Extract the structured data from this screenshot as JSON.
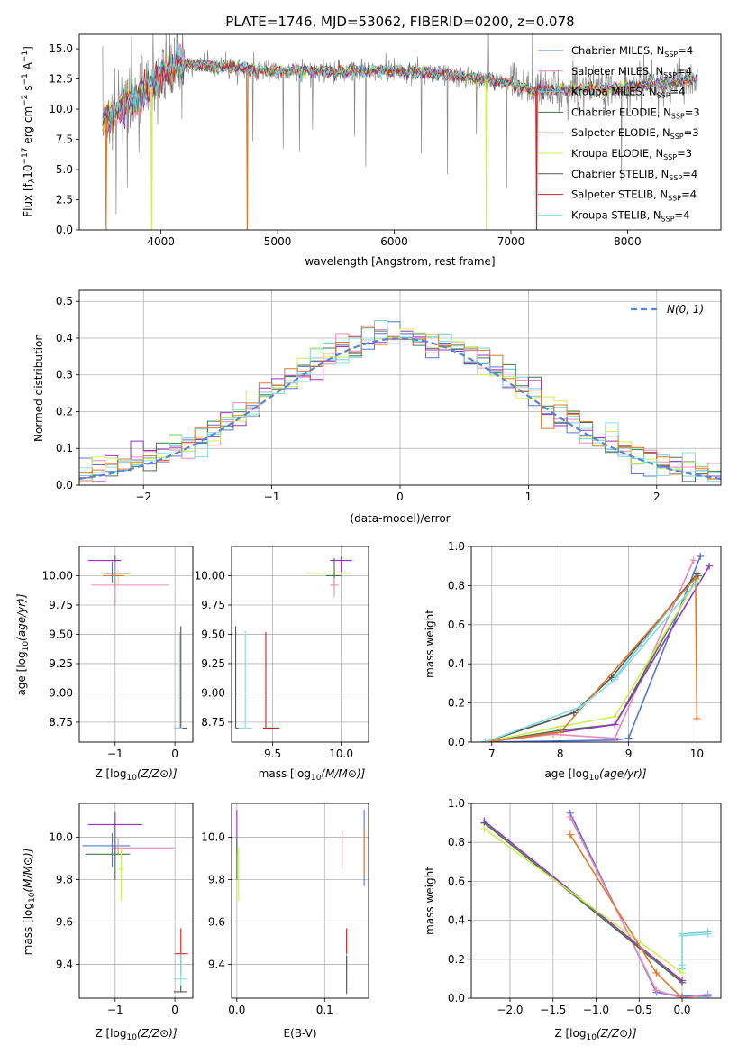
{
  "figure": {
    "title": "PLATE=1746, MJD=53062, FIBERID=0200, z=0.078"
  },
  "colors": {
    "Chabrier MILES": "#5577dd",
    "Salpeter MILES": "#ee88bb",
    "Kroupa MILES": "#77ccdd",
    "Chabrier ELODIE": "#447744",
    "Salpeter ELODIE": "#9933bb",
    "Kroupa ELODIE": "#ccee55",
    "Chabrier STELIB": "#555555",
    "Salpeter STELIB": "#cc2222",
    "Kroupa STELIB": "#88dddd",
    "data": "#888888",
    "orange": "#e07a2a"
  },
  "chart_data": [
    {
      "id": "spectrum",
      "type": "line",
      "title": "PLATE=1746, MJD=53062, FIBERID=0200, z=0.078",
      "xlabel": "wavelength [Angstrom, rest frame]",
      "ylabel": "Flux [f",
      "xlim": [
        3300,
        8800
      ],
      "ylim": [
        0,
        16.2
      ],
      "xticks": [
        4000,
        5000,
        6000,
        7000,
        8000
      ],
      "yticks": [
        0.0,
        2.5,
        5.0,
        7.5,
        10.0,
        12.5,
        15.0
      ],
      "legend": [
        {
          "label": "Chabrier MILES, N",
          "sub": "SSP",
          "tail": "=4"
        },
        {
          "label": "Salpeter MILES, N",
          "sub": "SSP",
          "tail": "=4"
        },
        {
          "label": "Kroupa MILES, N",
          "sub": "SSP",
          "tail": "=4"
        },
        {
          "label": "Chabrier ELODIE, N",
          "sub": "SSP",
          "tail": "=3"
        },
        {
          "label": "Salpeter ELODIE, N",
          "sub": "SSP",
          "tail": "=3"
        },
        {
          "label": "Kroupa ELODIE, N",
          "sub": "SSP",
          "tail": "=3"
        },
        {
          "label": "Chabrier STELIB, N",
          "sub": "SSP",
          "tail": "=4"
        },
        {
          "label": "Salpeter STELIB, N",
          "sub": "SSP",
          "tail": "=4"
        },
        {
          "label": "Kroupa STELIB, N",
          "sub": "SSP",
          "tail": "=4"
        }
      ],
      "continuum": [
        [
          3500,
          9.0
        ],
        [
          3700,
          10.5
        ],
        [
          3900,
          11.5
        ],
        [
          4000,
          13.0
        ],
        [
          4200,
          13.8
        ],
        [
          4500,
          13.5
        ],
        [
          5000,
          13.2
        ],
        [
          5500,
          13.1
        ],
        [
          6000,
          13.2
        ],
        [
          6500,
          12.8
        ],
        [
          7000,
          12.2
        ],
        [
          7200,
          11.5
        ],
        [
          7500,
          11.6
        ],
        [
          8000,
          11.8
        ],
        [
          8600,
          12.5
        ]
      ],
      "dips": [
        [
          3530,
          0.0
        ],
        [
          3920,
          0.0
        ],
        [
          4740,
          0.0
        ],
        [
          6790,
          0.0
        ],
        [
          7220,
          0.0
        ]
      ]
    },
    {
      "id": "residuals",
      "type": "line",
      "xlabel": "(data-model)/error",
      "ylabel": "Normed distribution",
      "xlim": [
        -2.5,
        2.5
      ],
      "ylim": [
        0,
        0.53
      ],
      "xticks": [
        -2,
        -1,
        0,
        1,
        2
      ],
      "yticks": [
        0.0,
        0.1,
        0.2,
        0.3,
        0.4,
        0.5
      ],
      "legend_label": "N(0, 1)"
    },
    {
      "id": "age_vs_Z",
      "type": "scatter",
      "xlabel": "Z [log",
      "ylabel": "age  [log",
      "xlim": [
        -1.6,
        0.3
      ],
      "ylim": [
        8.58,
        10.25
      ],
      "xticks": [
        -1,
        0
      ],
      "yticks": [
        8.75,
        9.0,
        9.25,
        9.5,
        9.75,
        10.0
      ]
    },
    {
      "id": "age_vs_mass",
      "type": "scatter",
      "xlabel": "mass [log",
      "ylabel": "",
      "xlim": [
        9.2,
        10.2
      ],
      "ylim": [
        8.58,
        10.25
      ],
      "xticks": [
        9.5,
        10.0
      ],
      "yticks": [
        8.75,
        9.0,
        9.25,
        9.5,
        9.75,
        10.0
      ]
    },
    {
      "id": "weight_vs_age",
      "type": "line",
      "xlabel": "age  [log",
      "ylabel": "mass weight",
      "xlim": [
        6.7,
        10.35
      ],
      "ylim": [
        0,
        1.0
      ],
      "xticks": [
        7,
        8,
        9,
        10
      ],
      "yticks": [
        0.0,
        0.2,
        0.4,
        0.6,
        0.8,
        1.0
      ],
      "series": [
        {
          "name": "Chabrier MILES",
          "x": [
            6.9,
            8.8,
            9.0,
            10.05
          ],
          "y": [
            0.0,
            0.01,
            0.02,
            0.95
          ]
        },
        {
          "name": "Salpeter MILES",
          "x": [
            6.9,
            7.9,
            8.8,
            9.95
          ],
          "y": [
            0.0,
            0.04,
            0.02,
            0.93
          ]
        },
        {
          "name": "Kroupa MILES",
          "x": [
            6.9,
            8.2,
            8.75,
            8.8,
            10.0
          ],
          "y": [
            0.0,
            0.15,
            0.33,
            0.33,
            0.86
          ]
        },
        {
          "name": "Chabrier ELODIE",
          "x": [
            6.9,
            8.0,
            8.8,
            10.02
          ],
          "y": [
            0.0,
            0.06,
            0.09,
            0.85
          ]
        },
        {
          "name": "Salpeter ELODIE",
          "x": [
            6.9,
            8.0,
            8.8,
            10.18
          ],
          "y": [
            0.0,
            0.05,
            0.09,
            0.9
          ]
        },
        {
          "name": "Kroupa ELODIE",
          "x": [
            6.9,
            8.0,
            8.8,
            10.0
          ],
          "y": [
            0.0,
            0.08,
            0.13,
            0.83
          ]
        },
        {
          "name": "Chabrier STELIB",
          "x": [
            6.9,
            8.2,
            8.75,
            10.0
          ],
          "y": [
            0.0,
            0.15,
            0.33,
            0.86
          ]
        },
        {
          "name": "Salpeter STELIB",
          "x": [
            6.9,
            8.0,
            9.98,
            10.0
          ],
          "y": [
            0.0,
            0.05,
            0.84,
            0.12
          ]
        },
        {
          "name": "Kroupa STELIB",
          "x": [
            6.9,
            8.3,
            8.8,
            10.0
          ],
          "y": [
            0.0,
            0.18,
            0.32,
            0.82
          ]
        }
      ]
    },
    {
      "id": "mass_vs_Z",
      "type": "scatter",
      "xlabel": "Z [log",
      "ylabel": "mass [log",
      "xlim": [
        -1.6,
        0.3
      ],
      "ylim": [
        9.24,
        10.16
      ],
      "xticks": [
        -1,
        0
      ],
      "yticks": [
        9.4,
        9.6,
        9.8,
        10.0
      ]
    },
    {
      "id": "mass_vs_EBV",
      "type": "scatter",
      "xlabel": "E(B-V)",
      "ylabel": "",
      "xlim": [
        -0.006,
        0.15
      ],
      "ylim": [
        9.24,
        10.16
      ],
      "xticks": [
        0.0,
        0.1
      ],
      "yticks": [
        9.4,
        9.6,
        9.8,
        10.0
      ]
    },
    {
      "id": "weight_vs_Z",
      "type": "line",
      "xlabel": "Z [log",
      "ylabel": "mass weight",
      "xlim": [
        -2.45,
        0.45
      ],
      "ylim": [
        0,
        1.0
      ],
      "xticks": [
        -2.0,
        -1.5,
        -1.0,
        -0.5,
        0.0
      ],
      "yticks": [
        0.0,
        0.2,
        0.4,
        0.6,
        0.8,
        1.0
      ],
      "series": [
        {
          "name": "Chabrier MILES",
          "x": [
            -1.3,
            -0.3,
            0.0,
            0.3
          ],
          "y": [
            0.95,
            0.03,
            0.01,
            0.01
          ]
        },
        {
          "name": "Salpeter MILES",
          "x": [
            -1.3,
            -0.3,
            0.0,
            0.3
          ],
          "y": [
            0.93,
            0.04,
            0.0,
            0.02
          ]
        },
        {
          "name": "Kroupa MILES",
          "x": [
            0.0,
            0.0,
            0.3
          ],
          "y": [
            0.15,
            0.33,
            0.34
          ]
        },
        {
          "name": "Chabrier ELODIE",
          "x": [
            -2.3,
            0.0
          ],
          "y": [
            0.9,
            0.08
          ]
        },
        {
          "name": "Salpeter ELODIE",
          "x": [
            -2.3,
            0.0
          ],
          "y": [
            0.91,
            0.09
          ]
        },
        {
          "name": "Kroupa ELODIE",
          "x": [
            -2.3,
            0.0
          ],
          "y": [
            0.87,
            0.13
          ]
        },
        {
          "name": "Salpeter STELIB",
          "x": [
            -1.3,
            -0.3,
            0.0
          ],
          "y": [
            0.84,
            0.13,
            0.0
          ]
        },
        {
          "name": "Kroupa STELIB",
          "x": [
            0.0,
            0.0,
            0.3
          ],
          "y": [
            0.17,
            0.32,
            0.33
          ]
        }
      ]
    }
  ]
}
